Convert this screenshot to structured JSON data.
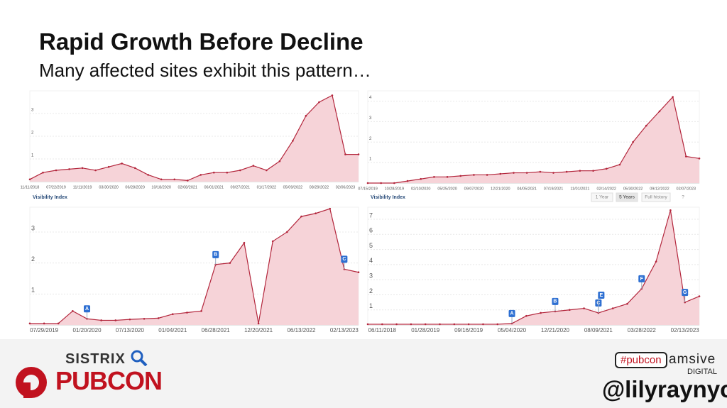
{
  "title": "Rapid Growth Before Decline",
  "subtitle": "Many affected sites exhibit this pattern…",
  "controls": [
    "1 Year",
    "5 Years",
    "Full history",
    "?"
  ],
  "footer": {
    "sistrix": "SISTRIX",
    "pubcon": "PUBCON",
    "hashtag": "#pubcon",
    "amsive": "amsive",
    "digital": "DIGITAL",
    "handle": "@lilyraynyc"
  },
  "chart_data": [
    {
      "type": "line",
      "color": "#b3263c",
      "fill": "#f6d3d8",
      "grid": true,
      "categories": [
        "11/11/2018",
        null,
        "07/22/2019",
        null,
        "11/11/2019",
        null,
        "03/30/2020",
        null,
        "06/28/2020",
        null,
        "10/18/2020",
        null,
        "02/08/2021",
        null,
        "06/01/2021",
        null,
        "09/27/2021",
        null,
        "01/17/2022",
        null,
        "05/09/2022",
        null,
        "08/29/2022",
        null,
        "02/06/2023",
        null
      ],
      "values": [
        0.1,
        0.4,
        0.5,
        0.55,
        0.6,
        0.5,
        0.65,
        0.8,
        0.6,
        0.3,
        0.1,
        0.1,
        0.05,
        0.3,
        0.4,
        0.4,
        0.5,
        0.7,
        0.5,
        0.9,
        1.8,
        2.9,
        3.5,
        3.8,
        1.2,
        1.2
      ],
      "ylim": [
        0,
        4
      ],
      "yticks": [
        1,
        2,
        3
      ]
    },
    {
      "type": "line",
      "color": "#b3263c",
      "fill": "#f6d3d8",
      "grid": true,
      "categories": [
        "07/15/2019",
        null,
        "10/28/2019",
        null,
        "02/10/2020",
        null,
        "05/25/2020",
        null,
        "09/07/2020",
        null,
        "12/21/2020",
        null,
        "04/05/2021",
        null,
        "07/19/2021",
        null,
        "11/01/2021",
        null,
        "02/14/2022",
        null,
        "05/30/2022",
        null,
        "09/12/2022",
        null,
        "02/07/2023",
        null
      ],
      "values": [
        0,
        0,
        0,
        0.1,
        0.2,
        0.3,
        0.3,
        0.35,
        0.4,
        0.4,
        0.45,
        0.5,
        0.5,
        0.55,
        0.5,
        0.55,
        0.6,
        0.6,
        0.7,
        0.9,
        2.0,
        2.8,
        3.5,
        4.2,
        1.3,
        1.2
      ],
      "ylim": [
        0,
        4.5
      ],
      "yticks": [
        1,
        2,
        3,
        4
      ]
    },
    {
      "type": "line",
      "title": "Visibility Index",
      "color": "#b3263c",
      "fill": "#f6d3d8",
      "grid": true,
      "categories": [
        null,
        "07/29/2019",
        null,
        null,
        "01/20/2020",
        null,
        null,
        "07/13/2020",
        null,
        null,
        "01/04/2021",
        null,
        null,
        "06/28/2021",
        null,
        null,
        "12/20/2021",
        null,
        null,
        "06/13/2022",
        null,
        null,
        "02/13/2023",
        null
      ],
      "values": [
        0.05,
        0.05,
        0.05,
        0.45,
        0.2,
        0.15,
        0.15,
        0.18,
        0.2,
        0.22,
        0.35,
        0.4,
        0.45,
        1.95,
        2.0,
        2.65,
        0.05,
        2.7,
        3.0,
        3.5,
        3.6,
        3.75,
        1.8,
        1.7
      ],
      "ylim": [
        0,
        3.8
      ],
      "yticks": [
        1,
        2,
        3
      ],
      "annotations": [
        {
          "text": "A",
          "category": "01/20/2020"
        },
        {
          "text": "B",
          "category": "06/28/2021"
        },
        {
          "text": "C",
          "category": "02/13/2023"
        }
      ]
    },
    {
      "type": "line",
      "title": "Visibility Index",
      "color": "#b3263c",
      "fill": "#f6d3d8",
      "grid": true,
      "categories": [
        null,
        "06/11/2018",
        null,
        null,
        "01/28/2019",
        null,
        null,
        "09/16/2019",
        null,
        null,
        "05/04/2020",
        null,
        null,
        "12/21/2020",
        null,
        null,
        "08/09/2021",
        null,
        null,
        "03/28/2022",
        null,
        null,
        "02/13/2023",
        null
      ],
      "values": [
        0.05,
        0.05,
        0.05,
        0.05,
        0.05,
        0.05,
        0.05,
        0.05,
        0.05,
        0.05,
        0.1,
        0.6,
        0.8,
        0.9,
        1.0,
        1.1,
        0.8,
        1.1,
        1.4,
        2.4,
        4.2,
        7.6,
        1.5,
        1.9
      ],
      "ylim": [
        0,
        7.8
      ],
      "yticks": [
        1,
        2,
        3,
        4,
        5,
        6,
        7
      ],
      "annotations": [
        {
          "text": "A",
          "category": "05/04/2020"
        },
        {
          "text": "B",
          "category": "12/21/2020"
        },
        {
          "text": "C",
          "category": "08/09/2021"
        },
        {
          "text": "E",
          "category": "08/09/2021"
        },
        {
          "text": "F",
          "category": "03/28/2022"
        },
        {
          "text": "G",
          "category": "02/13/2023"
        }
      ]
    }
  ]
}
